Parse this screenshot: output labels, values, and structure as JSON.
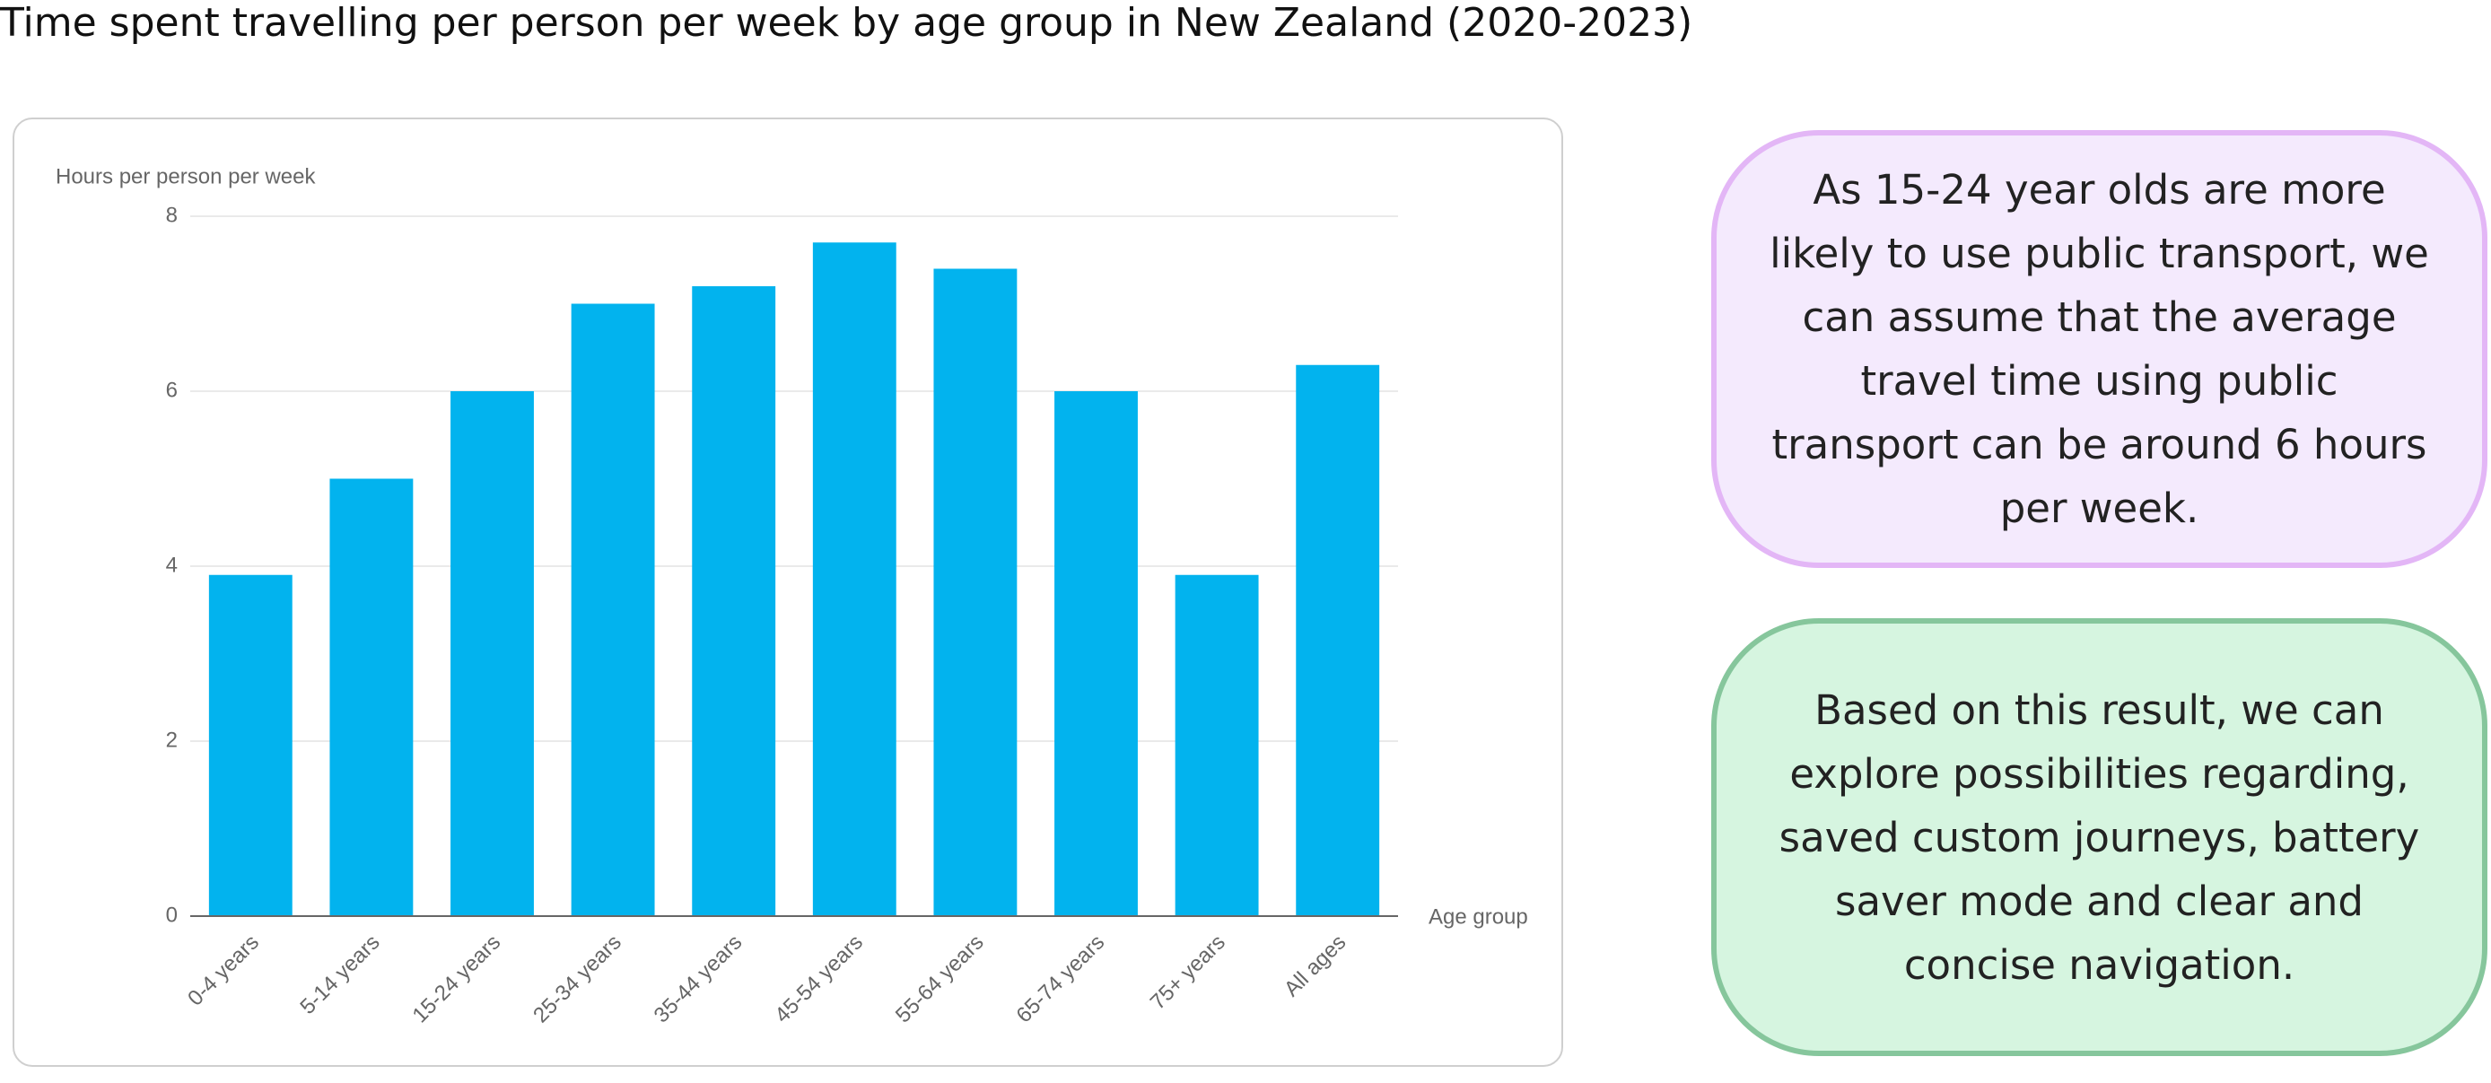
{
  "chart_data": {
    "type": "bar",
    "title": "Time spent travelling per person per week by age group in New Zealand (2020-2023)",
    "y_label": "Hours per person per week",
    "x_label": "Age group",
    "categories": [
      "0-4 years",
      "5-14 years",
      "15-24 years",
      "25-34 years",
      "35-44 years",
      "45-54 years",
      "55-64 years",
      "65-74 years",
      "75+ years",
      "All ages"
    ],
    "values": [
      3.9,
      5.0,
      6.0,
      7.0,
      7.2,
      7.7,
      7.4,
      6.0,
      3.9,
      6.3
    ],
    "color": "#02b3ee",
    "ylim": [
      0,
      8
    ],
    "yticks": [
      0,
      2,
      4,
      6,
      8
    ],
    "grid": true,
    "annotations": [
      "As 15-24 year olds are more likely to use public transport, we can assume that the average travel time using public transport can be around 6 hours per week.",
      "Based on this result, we can explore possibilities regarding, saved custom journeys, battery saver mode and clear and concise navigation."
    ]
  }
}
